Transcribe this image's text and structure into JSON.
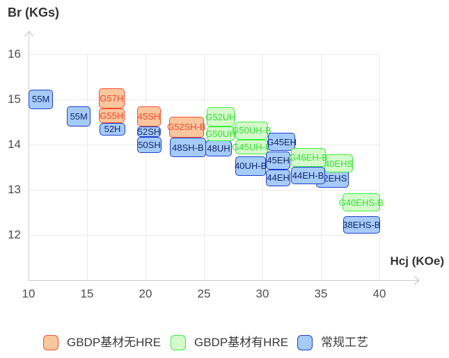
{
  "title": "Br (KGs)",
  "x_axis_title": "Hcj (KOe)",
  "legend": [
    {
      "label": "GBDP基材无HRE",
      "series": "gbdp_no_hre",
      "fill": "#FAC69D",
      "border": "#FB4F2D"
    },
    {
      "label": "GBDP基材有HRE",
      "series": "gbdp_with_hre",
      "fill": "#D4FACB",
      "border": "#3BEF3B"
    },
    {
      "label": "常规工艺",
      "series": "conventional",
      "fill": "#A5CBF8",
      "border": "#1C3ED4"
    }
  ],
  "chart_data": {
    "type": "scatter",
    "subtype": "labeled-rectangle-grade-map",
    "title": "",
    "xlabel": "Hcj (KOe)",
    "ylabel": "Br (KGs)",
    "xlim": [
      10,
      43.3
    ],
    "ylim": [
      11,
      16.5
    ],
    "x_ticks": [
      10,
      15,
      20,
      25,
      30,
      35,
      40
    ],
    "y_ticks": [
      16,
      15,
      14,
      13,
      12
    ],
    "grid": true,
    "legend_position": "bottom",
    "series_names": {
      "gbdp_no_hre": "GBDP基材无HRE",
      "gbdp_with_hre": "GBDP基材有HRE",
      "conventional": "常规工艺"
    },
    "points": [
      {
        "label": "55M",
        "series": "conventional",
        "hcj": [
          10.0,
          12.1
        ],
        "br": [
          14.78,
          15.22
        ],
        "z": 1
      },
      {
        "label": "55M",
        "series": "conventional",
        "hcj": [
          13.3,
          15.3
        ],
        "br": [
          14.4,
          14.85
        ],
        "z": 1
      },
      {
        "label": "G57H",
        "series": "gbdp_no_hre",
        "hcj": [
          16.0,
          18.2
        ],
        "br": [
          14.8,
          15.25
        ],
        "z": 2
      },
      {
        "label": "G55H",
        "series": "gbdp_no_hre",
        "hcj": [
          16.0,
          18.2
        ],
        "br": [
          14.48,
          14.8
        ],
        "z": 2
      },
      {
        "label": "52H",
        "series": "conventional",
        "hcj": [
          16.05,
          18.3
        ],
        "br": [
          14.2,
          14.48
        ],
        "z": 1
      },
      {
        "label": "45SH",
        "series": "gbdp_no_hre",
        "hcj": [
          19.3,
          21.3
        ],
        "br": [
          14.4,
          14.85
        ],
        "z": 2
      },
      {
        "label": "52SH",
        "series": "conventional",
        "hcj": [
          19.3,
          21.3
        ],
        "br": [
          14.17,
          14.4
        ],
        "z": 1
      },
      {
        "label": "50SH",
        "series": "conventional",
        "hcj": [
          19.3,
          21.35
        ],
        "br": [
          13.82,
          14.17
        ],
        "z": 1
      },
      {
        "label": "G52SH-B",
        "series": "gbdp_no_hre",
        "hcj": [
          22.0,
          25.0
        ],
        "br": [
          14.15,
          14.62
        ],
        "z": 2
      },
      {
        "label": "48SH-B",
        "series": "conventional",
        "hcj": [
          22.1,
          25.15
        ],
        "br": [
          13.72,
          14.15
        ],
        "z": 1
      },
      {
        "label": "G52UH",
        "series": "gbdp_with_hre",
        "hcj": [
          25.25,
          27.6
        ],
        "br": [
          14.4,
          14.83
        ],
        "z": 2
      },
      {
        "label": "G50UH",
        "series": "gbdp_with_hre",
        "hcj": [
          25.25,
          27.6
        ],
        "br": [
          14.08,
          14.4
        ],
        "z": 2
      },
      {
        "label": "48UH",
        "series": "conventional",
        "hcj": [
          25.1,
          27.4
        ],
        "br": [
          13.74,
          14.09
        ],
        "z": 1
      },
      {
        "label": "G50UH-B",
        "series": "gbdp_with_hre",
        "hcj": [
          27.65,
          30.5
        ],
        "br": [
          14.11,
          14.51
        ],
        "z": 3
      },
      {
        "label": "G45UH-B",
        "series": "gbdp_with_hre",
        "hcj": [
          27.65,
          30.5
        ],
        "br": [
          13.78,
          14.11
        ],
        "z": 3
      },
      {
        "label": "40UH-B",
        "series": "conventional",
        "hcj": [
          27.7,
          30.3
        ],
        "br": [
          13.31,
          13.74
        ],
        "z": 2
      },
      {
        "label": "G45EH",
        "series": "conventional",
        "hcj": [
          30.5,
          32.8
        ],
        "br": [
          13.86,
          14.26
        ],
        "z": 4
      },
      {
        "label": "45EH",
        "series": "conventional",
        "hcj": [
          30.3,
          32.4
        ],
        "br": [
          13.45,
          13.85
        ],
        "z": 4
      },
      {
        "label": "44EH",
        "series": "conventional",
        "hcj": [
          30.3,
          32.4
        ],
        "br": [
          13.08,
          13.45
        ],
        "z": 4
      },
      {
        "label": "G46EH-B",
        "series": "gbdp_with_hre",
        "hcj": [
          32.45,
          35.4
        ],
        "br": [
          13.51,
          13.92
        ],
        "z": 5
      },
      {
        "label": "44EH-B",
        "series": "conventional",
        "hcj": [
          32.45,
          35.35
        ],
        "br": [
          13.12,
          13.51
        ],
        "z": 5
      },
      {
        "label": "42EHS",
        "series": "conventional",
        "hcj": [
          34.6,
          37.4
        ],
        "br": [
          13.05,
          13.47
        ],
        "z": 1
      },
      {
        "label": "40EHS",
        "series": "gbdp_with_hre",
        "hcj": [
          35.3,
          37.75
        ],
        "br": [
          13.38,
          13.78
        ],
        "z": 4
      },
      {
        "label": "G40EHS-B",
        "series": "gbdp_with_hre",
        "hcj": [
          36.85,
          40.05
        ],
        "br": [
          12.52,
          12.92
        ],
        "z": 2
      },
      {
        "label": "38EHS-B",
        "series": "conventional",
        "hcj": [
          36.9,
          40.05
        ],
        "br": [
          12.03,
          12.42
        ],
        "z": 1
      }
    ]
  }
}
